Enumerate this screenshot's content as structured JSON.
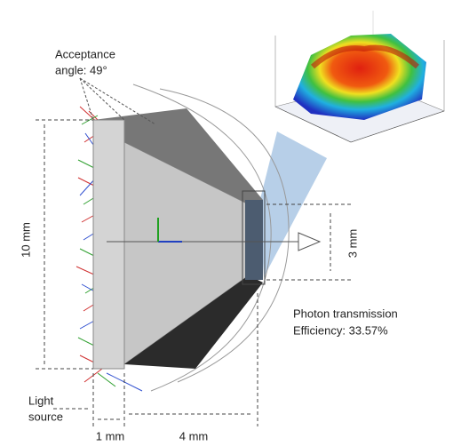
{
  "annotations": {
    "acceptance_angle": [
      "Acceptance",
      "angle: 49°"
    ],
    "height_input": "10 mm",
    "height_output": "3 mm",
    "photon_transmission": [
      "Photon transmission",
      "Efficiency: 33.57%"
    ],
    "light_source": [
      "Light",
      "source"
    ],
    "width_input": "1 mm",
    "width_taper": "4 mm"
  }
}
